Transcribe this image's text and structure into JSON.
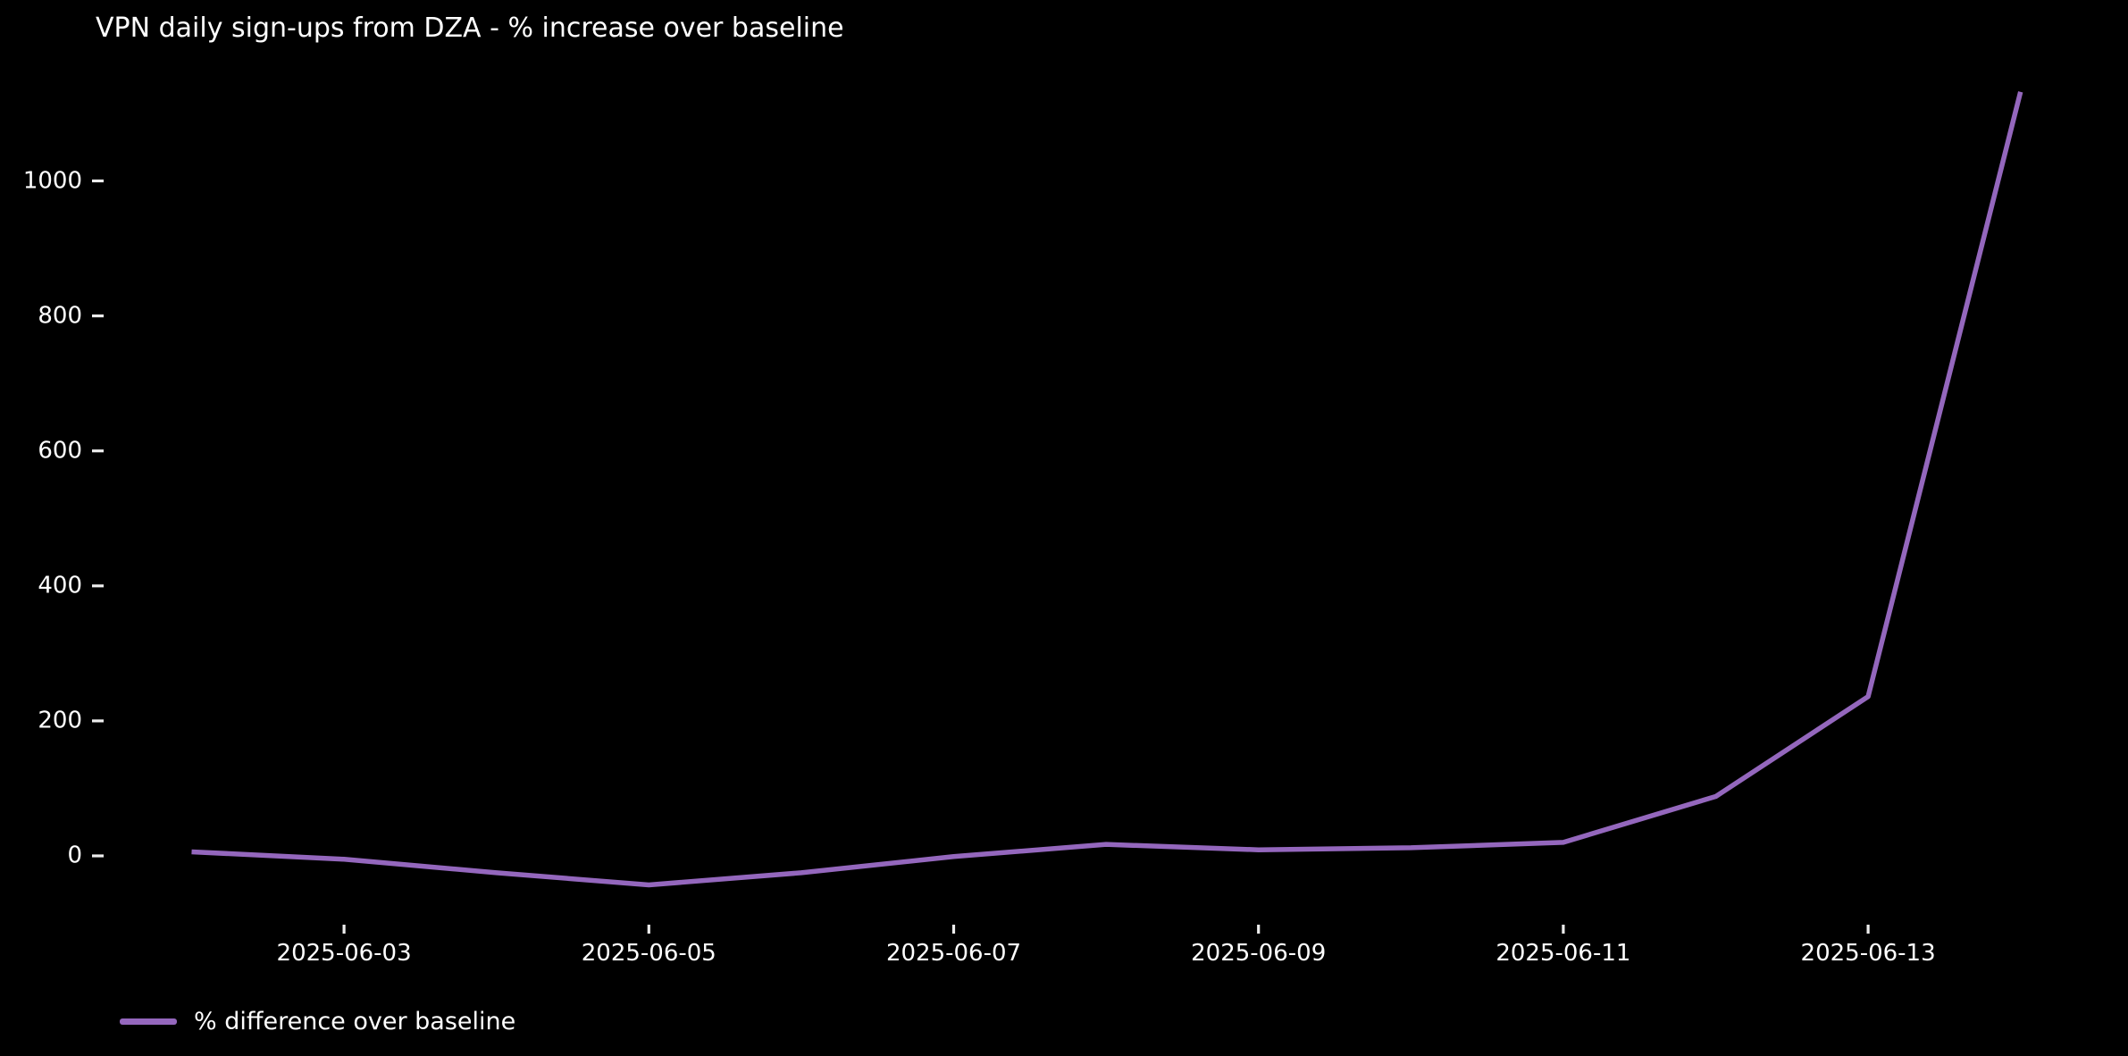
{
  "chart_data": {
    "type": "line",
    "title": "VPN daily sign-ups from DZA - % increase over baseline",
    "xlabel": "",
    "ylabel": "",
    "grid": false,
    "legend_position": "lower left, below axes",
    "x": [
      "2025-06-02",
      "2025-06-03",
      "2025-06-04",
      "2025-06-05",
      "2025-06-06",
      "2025-06-07",
      "2025-06-08",
      "2025-06-09",
      "2025-06-10",
      "2025-06-11",
      "2025-06-12",
      "2025-06-13",
      "2025-06-14"
    ],
    "series": [
      {
        "name": "% difference over baseline",
        "values": [
          6,
          -5,
          -25,
          -43,
          -25,
          -1,
          17,
          9,
          12,
          20,
          88,
          236,
          1132
        ]
      }
    ],
    "xtick_labels": [
      "2025-06-03",
      "2025-06-05",
      "2025-06-07",
      "2025-06-09",
      "2025-06-11",
      "2025-06-13"
    ],
    "ytick_values": [
      0,
      200,
      400,
      600,
      800,
      1000
    ],
    "ylim": [
      -102,
      1191
    ],
    "x_range": [
      "2025-06-02",
      "2025-06-14"
    ],
    "colors": {
      "background": "#000000",
      "text": "#ffffff",
      "tick": "#eeeeee",
      "line": "#9467bd"
    }
  }
}
